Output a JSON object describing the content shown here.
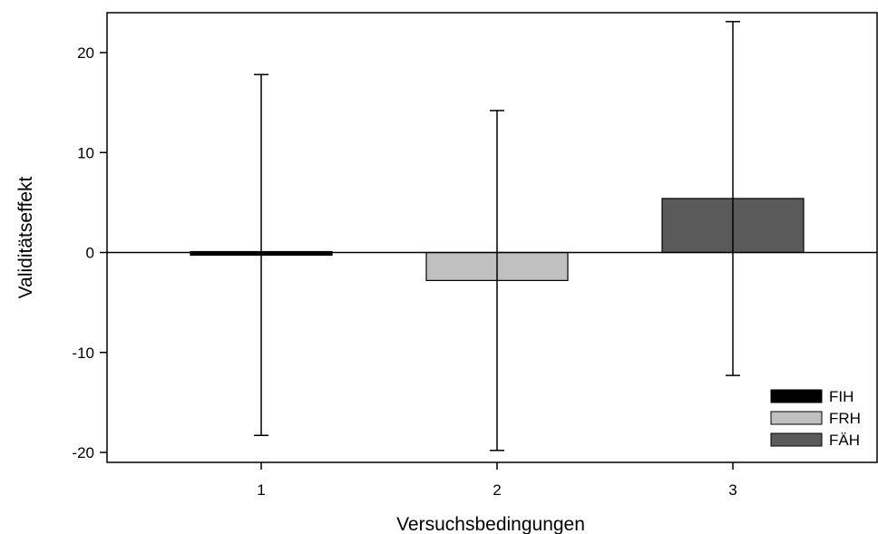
{
  "chart_data": {
    "type": "bar",
    "title": "",
    "xlabel": "Versuchsbedingungen",
    "ylabel": "Validitätseffekt",
    "categories": [
      "1",
      "2",
      "3"
    ],
    "yticks": [
      20,
      10,
      0,
      -10,
      -20
    ],
    "ylim": [
      -21,
      24
    ],
    "grid": false,
    "legend_position": "bottom-right",
    "series": [
      {
        "name": "FIH",
        "category": "1",
        "value": -0.2,
        "error_low": -18.3,
        "error_high": 17.8,
        "color": "#000000"
      },
      {
        "name": "FRH",
        "category": "2",
        "value": -2.8,
        "error_low": -19.8,
        "error_high": 14.2,
        "color": "#c0c0c0"
      },
      {
        "name": "FÄH",
        "category": "3",
        "value": 5.4,
        "error_low": -12.3,
        "error_high": 23.1,
        "color": "#5a5a5a"
      }
    ]
  }
}
